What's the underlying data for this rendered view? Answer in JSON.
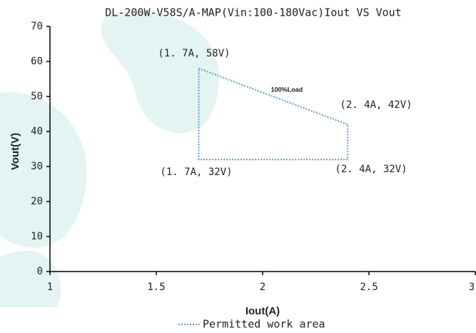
{
  "chart_data": {
    "type": "line",
    "title": "DL-200W-V58S/A-MAP(Vin:100-180Vac)Iout VS Vout",
    "x_label": "Iout(A)",
    "y_label": "Vout(V)",
    "x": [
      1.7,
      2.4,
      2.4,
      1.7,
      1.7
    ],
    "series": [
      {
        "name": "Permitted work area",
        "color": "#5b9bd5",
        "values": [
          58,
          42,
          32,
          32,
          58
        ]
      }
    ],
    "annotations": [
      "(1. 7A, 58V)",
      "100%Load",
      "(2. 4A, 42V)",
      "(1. 7A, 32V)",
      "(2. 4A, 32V)"
    ],
    "xlim": [
      1,
      3
    ],
    "xticks": [
      1,
      1.5,
      2,
      2.5,
      3
    ],
    "ylim": [
      0,
      70
    ],
    "yticks": [
      0,
      10,
      20,
      30,
      40,
      50,
      60,
      70
    ],
    "grid": false,
    "legend": "bottom"
  }
}
